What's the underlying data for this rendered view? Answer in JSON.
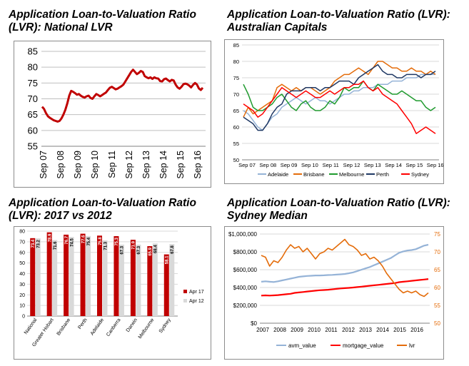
{
  "chart_data": [
    {
      "id": "national",
      "type": "line",
      "title": "Application Loan-to-Valuation Ratio (LVR): National LVR",
      "title_lines": [
        "Application Loan-to-Valuation Ratio",
        "(LVR): National LVR"
      ],
      "x_ticks": [
        "Sep 07",
        "Sep 08",
        "Sep 09",
        "Sep 10",
        "Sep 11",
        "Sep 12",
        "Sep 13",
        "Sep 14",
        "Sep 15",
        "Sep 16"
      ],
      "ylim": [
        55,
        85
      ],
      "y_ticks": [
        55,
        60,
        65,
        70,
        75,
        80,
        85
      ],
      "grid": true,
      "colors": {
        "line": "#c00000"
      },
      "series": [
        {
          "values": [
            67.5,
            66.8,
            65.5,
            64.5,
            64.0,
            63.6,
            63.2,
            63.0,
            62.8,
            63.0,
            63.8,
            65.0,
            66.5,
            68.5,
            71.0,
            72.5,
            72.2,
            71.8,
            71.3,
            71.5,
            71.0,
            70.6,
            70.4,
            70.8,
            71.0,
            70.3,
            70.0,
            70.8,
            71.5,
            71.2,
            70.8,
            71.2,
            71.6,
            72.0,
            72.8,
            73.5,
            73.8,
            73.4,
            73.0,
            73.2,
            73.6,
            74.0,
            74.5,
            75.5,
            76.5,
            77.5,
            78.5,
            79.2,
            78.5,
            77.8,
            78.2,
            78.8,
            78.5,
            77.2,
            76.8,
            76.5,
            76.8,
            76.3,
            76.8,
            76.5,
            76.4,
            75.6,
            75.5,
            76.2,
            76.4,
            75.9,
            75.5,
            76.0,
            75.8,
            74.5,
            73.6,
            73.2,
            73.8,
            74.6,
            74.8,
            74.6,
            74.2,
            73.6,
            74.4,
            75.0,
            74.5,
            73.3,
            72.8,
            73.5
          ]
        }
      ]
    },
    {
      "id": "capitals",
      "type": "line",
      "title": "Application Loan-to-Valuation Ratio (LVR): Australian Capitals",
      "title_lines": [
        "Application Loan-to-Valuation Ratio (LVR):",
        "Australian Capitals"
      ],
      "x_ticks": [
        "Sep 07",
        "Sep 08",
        "Sep 09",
        "Sep 10",
        "Sep 11",
        "Sep 12",
        "Sep 13",
        "Sep 14",
        "Sep 15",
        "Sep 16"
      ],
      "ylim": [
        50,
        85
      ],
      "y_ticks": [
        50,
        55,
        60,
        65,
        70,
        75,
        80,
        85
      ],
      "grid": true,
      "legend": "bottom",
      "series": [
        {
          "name": "Adelaide",
          "color": "#95b3d7",
          "values": [
            65,
            64,
            62,
            60,
            59,
            61,
            63,
            64,
            66,
            67,
            68,
            69,
            68,
            67,
            68,
            69,
            68,
            68,
            67,
            68,
            69,
            70,
            70,
            71,
            71,
            72,
            72,
            72,
            73,
            73,
            73,
            74,
            74,
            74,
            75,
            75,
            75,
            76,
            76,
            76,
            76
          ]
        },
        {
          "name": "Brisbane",
          "color": "#e46c0a",
          "values": [
            63,
            66,
            64,
            65,
            66,
            67,
            68,
            72,
            73,
            72,
            71,
            72,
            71,
            72,
            72,
            71,
            70,
            71,
            72,
            74,
            75,
            76,
            76,
            77,
            78,
            77,
            76,
            78,
            80,
            80,
            79,
            78,
            78,
            77,
            77,
            78,
            77,
            77,
            76,
            77,
            76
          ]
        },
        {
          "name": "Melbourne",
          "color": "#1f9a2e",
          "values": [
            73,
            70,
            66,
            65,
            65,
            66,
            67,
            69,
            70,
            68,
            66,
            65,
            67,
            68,
            66,
            65,
            65,
            66,
            68,
            67,
            69,
            72,
            71,
            72,
            72,
            74,
            72,
            71,
            73,
            72,
            71,
            70,
            70,
            71,
            70,
            69,
            68,
            68,
            66,
            65,
            66
          ]
        },
        {
          "name": "Perth",
          "color": "#1f3864",
          "values": [
            63,
            62,
            61,
            59,
            59,
            61,
            64,
            66,
            67,
            70,
            71,
            71,
            71,
            72,
            72,
            72,
            71,
            72,
            72,
            73,
            74,
            74,
            74,
            73,
            75,
            76,
            77,
            78,
            79,
            77,
            76,
            76,
            75,
            75,
            76,
            76,
            76,
            75,
            76,
            76,
            77
          ]
        },
        {
          "name": "Sydney",
          "color": "#ff0000",
          "values": [
            67,
            66,
            65,
            63,
            64,
            66,
            68,
            70,
            72,
            71,
            70,
            69,
            70,
            71,
            70,
            69,
            69,
            70,
            71,
            70,
            71,
            72,
            72,
            73,
            73,
            74,
            72,
            71,
            72,
            70,
            69,
            68,
            67,
            65,
            63,
            61,
            58,
            59,
            60,
            59,
            58
          ]
        }
      ]
    },
    {
      "id": "vs2012",
      "type": "bar",
      "title": "Application Loan-to-Valuation Ratio (LVR): 2017 vs 2012",
      "title_lines": [
        "Application Loan-to-Valuation Ratio",
        "(LVR): 2017 vs 2012"
      ],
      "categories": [
        "National",
        "Greater Hobart",
        "Brisbane",
        "Perth",
        "Adelaide",
        "Canberra",
        "Darwin",
        "Melbourne",
        "Sydney"
      ],
      "ylim": [
        0,
        80
      ],
      "y_ticks": [
        0,
        10,
        20,
        30,
        40,
        50,
        60,
        70,
        80
      ],
      "grid": true,
      "legend": "right",
      "series": [
        {
          "name": "Apr 17",
          "color": "#c00000",
          "values": [
            73.4,
            78.9,
            76.7,
            77.6,
            75.8,
            75.3,
            71.9,
            65.9,
            58.1
          ]
        },
        {
          "name": "Apr 12",
          "color": "#d9d9d9",
          "values": [
            73.2,
            71.6,
            74.5,
            75.4,
            71.3,
            67.3,
            67.3,
            68.4,
            67.8
          ]
        }
      ]
    },
    {
      "id": "sydney",
      "type": "line",
      "title": "Application Loan-to-Valuation Ratio (LVR): Sydney Median",
      "title_lines": [
        "Application Loan-to-Valuation Ratio (LVR):",
        "Sydney Median"
      ],
      "x_ticks": [
        "2007",
        "2008",
        "2009",
        "2010",
        "2011",
        "2012",
        "2013",
        "2014",
        "2015",
        "2016"
      ],
      "y_left_ticks": [
        "$0",
        "$200,000",
        "$400,000",
        "$600,000",
        "$800,000",
        "$1,000,000"
      ],
      "y_right_ticks": [
        "50",
        "55",
        "60",
        "65",
        "70",
        "75"
      ],
      "ylim_left": [
        0,
        1000000
      ],
      "ylim_right": [
        50,
        75
      ],
      "grid": true,
      "legend": "bottom",
      "series": [
        {
          "name": "avm_value",
          "axis": "left",
          "color": "#95b3d7",
          "values": [
            465000,
            470000,
            465000,
            462000,
            470000,
            480000,
            490000,
            500000,
            510000,
            520000,
            525000,
            530000,
            532000,
            535000,
            535000,
            537000,
            540000,
            542000,
            545000,
            548000,
            552000,
            560000,
            570000,
            585000,
            600000,
            615000,
            630000,
            650000,
            670000,
            690000,
            710000,
            730000,
            760000,
            790000,
            805000,
            815000,
            820000,
            830000,
            850000,
            870000,
            880000
          ]
        },
        {
          "name": "mortgage_value",
          "axis": "left",
          "color": "#ff0000",
          "values": [
            310000,
            312000,
            310000,
            312000,
            315000,
            320000,
            325000,
            330000,
            340000,
            345000,
            350000,
            355000,
            360000,
            365000,
            370000,
            372000,
            375000,
            380000,
            385000,
            390000,
            393000,
            396000,
            400000,
            405000,
            410000,
            415000,
            420000,
            425000,
            430000,
            435000,
            440000,
            445000,
            450000,
            460000,
            465000,
            470000,
            475000,
            480000,
            485000,
            490000,
            495000
          ]
        },
        {
          "name": "lvr",
          "axis": "right",
          "color": "#e46c0a",
          "values": [
            69.0,
            68.5,
            66.0,
            67.5,
            67.0,
            68.5,
            70.5,
            72.0,
            71.0,
            71.5,
            70.0,
            71.0,
            69.5,
            68.0,
            69.5,
            70.0,
            71.0,
            70.5,
            71.5,
            72.5,
            73.5,
            72.0,
            71.5,
            70.5,
            69.0,
            69.5,
            68.0,
            68.5,
            67.5,
            66.0,
            64.0,
            62.5,
            61.0,
            59.5,
            58.5,
            59.0,
            58.5,
            59.0,
            58.0,
            57.5,
            58.5
          ]
        }
      ]
    }
  ]
}
